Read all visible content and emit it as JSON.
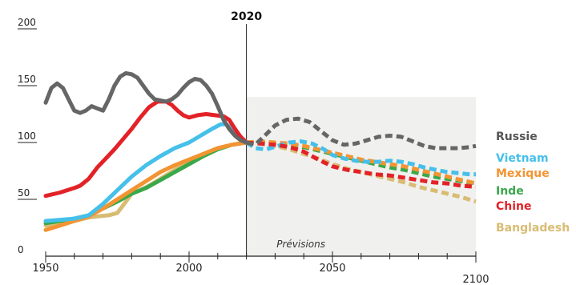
{
  "chart_data": {
    "type": "line",
    "title": "",
    "xlabel": "",
    "ylabel": "",
    "xlim": [
      1950,
      2100
    ],
    "ylim": [
      0,
      200
    ],
    "x_ticks": [
      1950,
      2000,
      2050,
      2100
    ],
    "y_ticks": [
      0,
      50,
      100,
      150,
      200
    ],
    "y_tick_labels": [
      "0",
      "50",
      "100",
      "150",
      "200"
    ],
    "x_tick_labels": [
      "1950",
      "2000",
      "2050",
      "2100"
    ],
    "marker": {
      "x": 2020,
      "label": "2020"
    },
    "forecast": {
      "from": 2020,
      "to": 2100,
      "label": "Prévisions",
      "shade_color": "#f0f0ee"
    },
    "legend_placement": "right",
    "grid": false,
    "series": [
      {
        "name": "Russie",
        "color": "#666666",
        "historical": [
          [
            1950,
            135
          ],
          [
            1952,
            148
          ],
          [
            1954,
            152
          ],
          [
            1956,
            148
          ],
          [
            1958,
            138
          ],
          [
            1960,
            128
          ],
          [
            1962,
            126
          ],
          [
            1964,
            128
          ],
          [
            1966,
            132
          ],
          [
            1968,
            130
          ],
          [
            1970,
            128
          ],
          [
            1972,
            138
          ],
          [
            1974,
            150
          ],
          [
            1976,
            158
          ],
          [
            1978,
            161
          ],
          [
            1980,
            160
          ],
          [
            1982,
            157
          ],
          [
            1984,
            150
          ],
          [
            1986,
            143
          ],
          [
            1988,
            138
          ],
          [
            1990,
            137
          ],
          [
            1992,
            136
          ],
          [
            1994,
            138
          ],
          [
            1996,
            142
          ],
          [
            1998,
            148
          ],
          [
            2000,
            153
          ],
          [
            2002,
            156
          ],
          [
            2004,
            155
          ],
          [
            2006,
            150
          ],
          [
            2008,
            143
          ],
          [
            2010,
            132
          ],
          [
            2012,
            120
          ],
          [
            2014,
            112
          ],
          [
            2016,
            106
          ],
          [
            2018,
            102
          ],
          [
            2020,
            100
          ]
        ],
        "forecast": [
          [
            2020,
            100
          ],
          [
            2023,
            98
          ],
          [
            2026,
            105
          ],
          [
            2030,
            115
          ],
          [
            2034,
            120
          ],
          [
            2038,
            121
          ],
          [
            2042,
            118
          ],
          [
            2046,
            110
          ],
          [
            2050,
            102
          ],
          [
            2054,
            98
          ],
          [
            2058,
            99
          ],
          [
            2062,
            102
          ],
          [
            2066,
            105
          ],
          [
            2070,
            106
          ],
          [
            2074,
            105
          ],
          [
            2078,
            101
          ],
          [
            2082,
            97
          ],
          [
            2086,
            95
          ],
          [
            2090,
            95
          ],
          [
            2094,
            95
          ],
          [
            2098,
            96
          ],
          [
            2100,
            97
          ]
        ]
      },
      {
        "name": "Vietnam",
        "color": "#45c0ea",
        "historical": [
          [
            1950,
            31
          ],
          [
            1955,
            32
          ],
          [
            1960,
            33
          ],
          [
            1965,
            36
          ],
          [
            1970,
            46
          ],
          [
            1975,
            58
          ],
          [
            1980,
            70
          ],
          [
            1985,
            80
          ],
          [
            1990,
            88
          ],
          [
            1995,
            95
          ],
          [
            2000,
            100
          ],
          [
            2004,
            106
          ],
          [
            2008,
            112
          ],
          [
            2011,
            116
          ],
          [
            2013,
            116
          ],
          [
            2015,
            112
          ],
          [
            2018,
            105
          ],
          [
            2020,
            100
          ]
        ],
        "forecast": [
          [
            2020,
            100
          ],
          [
            2023,
            95
          ],
          [
            2027,
            94
          ],
          [
            2031,
            97
          ],
          [
            2035,
            100
          ],
          [
            2039,
            101
          ],
          [
            2043,
            99
          ],
          [
            2047,
            94
          ],
          [
            2050,
            89
          ],
          [
            2054,
            86
          ],
          [
            2058,
            84
          ],
          [
            2062,
            83
          ],
          [
            2066,
            83
          ],
          [
            2070,
            84
          ],
          [
            2074,
            83
          ],
          [
            2078,
            81
          ],
          [
            2082,
            78
          ],
          [
            2086,
            76
          ],
          [
            2090,
            74
          ],
          [
            2094,
            73
          ],
          [
            2098,
            72
          ],
          [
            2100,
            72
          ]
        ]
      },
      {
        "name": "Mexique",
        "color": "#f39433",
        "historical": [
          [
            1950,
            23
          ],
          [
            1955,
            27
          ],
          [
            1960,
            31
          ],
          [
            1965,
            35
          ],
          [
            1970,
            42
          ],
          [
            1975,
            50
          ],
          [
            1980,
            58
          ],
          [
            1985,
            66
          ],
          [
            1990,
            74
          ],
          [
            1995,
            80
          ],
          [
            2000,
            85
          ],
          [
            2005,
            90
          ],
          [
            2010,
            95
          ],
          [
            2015,
            98
          ],
          [
            2020,
            100
          ]
        ],
        "forecast": [
          [
            2020,
            100
          ],
          [
            2025,
            101
          ],
          [
            2030,
            100
          ],
          [
            2035,
            99
          ],
          [
            2040,
            97
          ],
          [
            2045,
            94
          ],
          [
            2050,
            91
          ],
          [
            2055,
            88
          ],
          [
            2060,
            85
          ],
          [
            2065,
            83
          ],
          [
            2070,
            81
          ],
          [
            2075,
            79
          ],
          [
            2080,
            76
          ],
          [
            2085,
            73
          ],
          [
            2090,
            70
          ],
          [
            2095,
            67
          ],
          [
            2100,
            64
          ]
        ]
      },
      {
        "name": "Inde",
        "color": "#3aa84a",
        "historical": [
          [
            1950,
            29
          ],
          [
            1955,
            31
          ],
          [
            1960,
            33
          ],
          [
            1965,
            36
          ],
          [
            1970,
            42
          ],
          [
            1975,
            48
          ],
          [
            1980,
            55
          ],
          [
            1985,
            60
          ],
          [
            1990,
            67
          ],
          [
            1995,
            74
          ],
          [
            2000,
            81
          ],
          [
            2005,
            88
          ],
          [
            2010,
            94
          ],
          [
            2015,
            98
          ],
          [
            2020,
            100
          ]
        ],
        "forecast": [
          [
            2020,
            100
          ],
          [
            2025,
            100
          ],
          [
            2030,
            99
          ],
          [
            2035,
            98
          ],
          [
            2040,
            96
          ],
          [
            2045,
            93
          ],
          [
            2050,
            90
          ],
          [
            2055,
            87
          ],
          [
            2060,
            84
          ],
          [
            2065,
            81
          ],
          [
            2070,
            78
          ],
          [
            2075,
            76
          ],
          [
            2080,
            73
          ],
          [
            2085,
            70
          ],
          [
            2090,
            68
          ],
          [
            2095,
            66
          ],
          [
            2100,
            64
          ]
        ]
      },
      {
        "name": "Chine",
        "color": "#e32228",
        "historical": [
          [
            1950,
            53
          ],
          [
            1955,
            56
          ],
          [
            1960,
            60
          ],
          [
            1962,
            62
          ],
          [
            1965,
            68
          ],
          [
            1968,
            78
          ],
          [
            1971,
            86
          ],
          [
            1974,
            94
          ],
          [
            1977,
            103
          ],
          [
            1980,
            112
          ],
          [
            1983,
            122
          ],
          [
            1986,
            131
          ],
          [
            1989,
            136
          ],
          [
            1992,
            136
          ],
          [
            1994,
            133
          ],
          [
            1996,
            128
          ],
          [
            1998,
            124
          ],
          [
            2000,
            122
          ],
          [
            2003,
            124
          ],
          [
            2006,
            125
          ],
          [
            2009,
            124
          ],
          [
            2012,
            123
          ],
          [
            2014,
            120
          ],
          [
            2016,
            112
          ],
          [
            2018,
            105
          ],
          [
            2020,
            100
          ]
        ],
        "forecast": [
          [
            2020,
            100
          ],
          [
            2025,
            99
          ],
          [
            2030,
            98
          ],
          [
            2035,
            96
          ],
          [
            2040,
            92
          ],
          [
            2045,
            85
          ],
          [
            2050,
            79
          ],
          [
            2055,
            76
          ],
          [
            2060,
            74
          ],
          [
            2065,
            72
          ],
          [
            2070,
            71
          ],
          [
            2075,
            69
          ],
          [
            2080,
            67
          ],
          [
            2085,
            65
          ],
          [
            2090,
            64
          ],
          [
            2095,
            62
          ],
          [
            2100,
            61
          ]
        ]
      },
      {
        "name": "Bangladesh",
        "color": "#d9bc73",
        "historical": [
          [
            1950,
            27
          ],
          [
            1955,
            29
          ],
          [
            1960,
            31
          ],
          [
            1965,
            34
          ],
          [
            1968,
            35
          ],
          [
            1972,
            36
          ],
          [
            1975,
            38
          ],
          [
            1978,
            48
          ],
          [
            1980,
            55
          ],
          [
            1983,
            58
          ],
          [
            1986,
            62
          ],
          [
            1990,
            68
          ],
          [
            1995,
            76
          ],
          [
            2000,
            84
          ],
          [
            2005,
            90
          ],
          [
            2010,
            95
          ],
          [
            2015,
            98
          ],
          [
            2020,
            100
          ]
        ],
        "forecast": [
          [
            2020,
            100
          ],
          [
            2025,
            99
          ],
          [
            2030,
            97
          ],
          [
            2035,
            94
          ],
          [
            2040,
            90
          ],
          [
            2045,
            86
          ],
          [
            2050,
            81
          ],
          [
            2055,
            77
          ],
          [
            2060,
            74
          ],
          [
            2065,
            71
          ],
          [
            2070,
            68
          ],
          [
            2075,
            65
          ],
          [
            2080,
            61
          ],
          [
            2085,
            58
          ],
          [
            2090,
            55
          ],
          [
            2095,
            52
          ],
          [
            2100,
            48
          ]
        ]
      }
    ]
  }
}
